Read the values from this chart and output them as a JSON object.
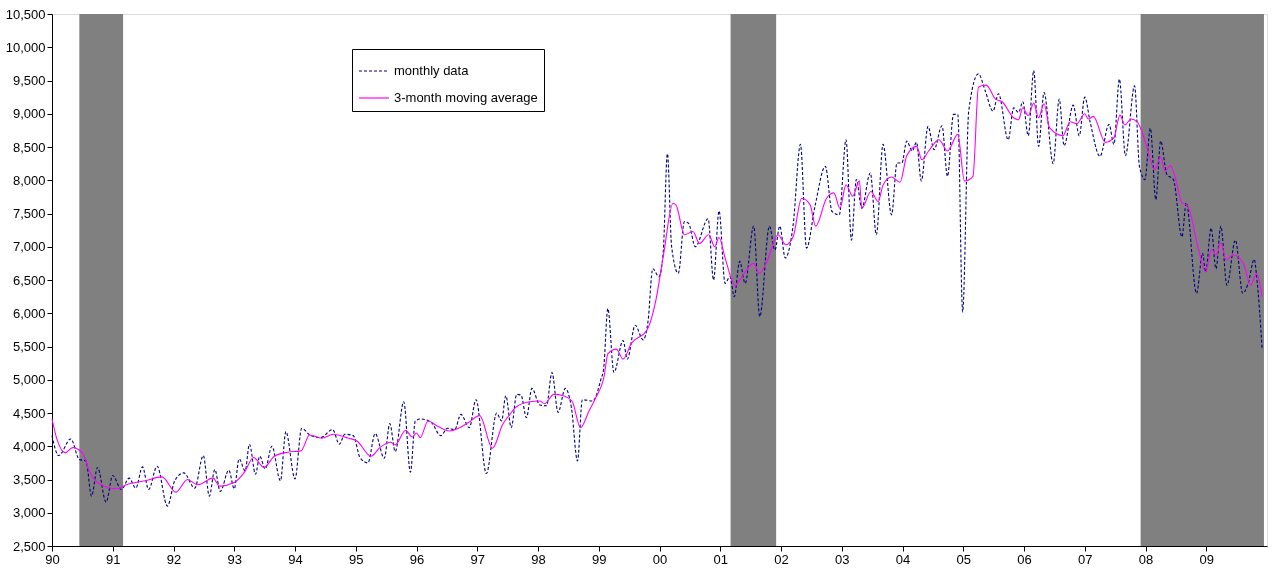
{
  "chart_data": {
    "type": "line",
    "xlim": [
      1990,
      2010
    ],
    "ylim": [
      2500,
      10500
    ],
    "xticks": [
      {
        "value": 1990,
        "label": "90"
      },
      {
        "value": 1991,
        "label": "91"
      },
      {
        "value": 1992,
        "label": "92"
      },
      {
        "value": 1993,
        "label": "93"
      },
      {
        "value": 1994,
        "label": "94"
      },
      {
        "value": 1995,
        "label": "95"
      },
      {
        "value": 1996,
        "label": "96"
      },
      {
        "value": 1997,
        "label": "97"
      },
      {
        "value": 1998,
        "label": "98"
      },
      {
        "value": 1999,
        "label": "99"
      },
      {
        "value": 2000,
        "label": "00"
      },
      {
        "value": 2001,
        "label": "01"
      },
      {
        "value": 2002,
        "label": "02"
      },
      {
        "value": 2003,
        "label": "03"
      },
      {
        "value": 2004,
        "label": "04"
      },
      {
        "value": 2005,
        "label": "05"
      },
      {
        "value": 2006,
        "label": "06"
      },
      {
        "value": 2007,
        "label": "07"
      },
      {
        "value": 2008,
        "label": "08"
      },
      {
        "value": 2009,
        "label": "09"
      }
    ],
    "yticks": [
      {
        "value": 2500,
        "label": "2,500"
      },
      {
        "value": 3000,
        "label": "3,000"
      },
      {
        "value": 3500,
        "label": "3,500"
      },
      {
        "value": 4000,
        "label": "4,000"
      },
      {
        "value": 4500,
        "label": "4,500"
      },
      {
        "value": 5000,
        "label": "5,000"
      },
      {
        "value": 5500,
        "label": "5,500"
      },
      {
        "value": 6000,
        "label": "6,000"
      },
      {
        "value": 6500,
        "label": "6,500"
      },
      {
        "value": 7000,
        "label": "7,000"
      },
      {
        "value": 7500,
        "label": "7,500"
      },
      {
        "value": 8000,
        "label": "8,000"
      },
      {
        "value": 8500,
        "label": "8,500"
      },
      {
        "value": 9000,
        "label": "9,000"
      },
      {
        "value": 9500,
        "label": "9,500"
      },
      {
        "value": 10000,
        "label": "10,000"
      },
      {
        "value": 10500,
        "label": "10,500"
      }
    ],
    "grid": false,
    "legend": "top",
    "marker": "none",
    "bands": [
      {
        "axis": "x",
        "from": 1990.45,
        "to": 1991.17,
        "color": "#808080"
      },
      {
        "axis": "x",
        "from": 2001.17,
        "to": 2001.92,
        "color": "#808080"
      },
      {
        "axis": "x",
        "from": 2007.92,
        "to": 2009.95,
        "color": "#808080"
      }
    ],
    "series": [
      {
        "name": "monthly data",
        "color": "#000080",
        "line_style": "dashed",
        "x": [
          1990.0,
          1990.11,
          1990.31,
          1990.45,
          1990.56,
          1990.65,
          1990.75,
          1990.89,
          1991.0,
          1991.14,
          1991.27,
          1991.38,
          1991.49,
          1991.59,
          1991.73,
          1991.9,
          1992.02,
          1992.17,
          1992.35,
          1992.49,
          1992.59,
          1992.68,
          1992.77,
          1992.91,
          1993.0,
          1993.08,
          1993.18,
          1993.25,
          1993.35,
          1993.42,
          1993.51,
          1993.62,
          1993.76,
          1993.85,
          1994.0,
          1994.11,
          1994.26,
          1994.42,
          1994.62,
          1994.73,
          1994.82,
          1994.96,
          1995.07,
          1995.2,
          1995.32,
          1995.47,
          1995.56,
          1995.65,
          1995.79,
          1995.9,
          1995.98,
          1996.07,
          1996.24,
          1996.4,
          1996.51,
          1996.63,
          1996.73,
          1996.87,
          1996.98,
          1997.15,
          1997.32,
          1997.4,
          1997.47,
          1997.56,
          1997.65,
          1997.72,
          1997.81,
          1997.9,
          1998.03,
          1998.14,
          1998.23,
          1998.33,
          1998.45,
          1998.55,
          1998.65,
          1998.73,
          1998.9,
          1999.04,
          1999.08,
          1999.15,
          1999.25,
          1999.4,
          1999.47,
          1999.6,
          1999.73,
          1999.81,
          1999.89,
          1999.99,
          2000.06,
          2000.13,
          2000.2,
          2000.31,
          2000.41,
          2000.48,
          2000.59,
          2000.8,
          2000.89,
          2000.98,
          2001.08,
          2001.16,
          2001.23,
          2001.32,
          2001.41,
          2001.55,
          2001.65,
          2001.81,
          2001.9,
          2001.98,
          2002.07,
          2002.2,
          2002.32,
          2002.42,
          2002.56,
          2002.73,
          2002.84,
          2002.96,
          2003.07,
          2003.16,
          2003.24,
          2003.33,
          2003.47,
          2003.57,
          2003.68,
          2003.82,
          2003.91,
          2003.99,
          2004.07,
          2004.16,
          2004.23,
          2004.31,
          2004.42,
          2004.52,
          2004.65,
          2004.74,
          2004.84,
          2004.91,
          2004.99,
          2005.09,
          2005.25,
          2005.36,
          2005.49,
          2005.58,
          2005.74,
          2005.83,
          2005.91,
          2005.98,
          2006.07,
          2006.16,
          2006.24,
          2006.33,
          2006.48,
          2006.58,
          2006.66,
          2006.81,
          2006.91,
          2007.0,
          2007.09,
          2007.25,
          2007.4,
          2007.48,
          2007.57,
          2007.67,
          2007.82,
          2007.9,
          2007.99,
          2008.08,
          2008.17,
          2008.25,
          2008.35,
          2008.46,
          2008.6,
          2008.67,
          2008.84,
          2008.94,
          2008.99,
          2009.08,
          2009.16,
          2009.24,
          2009.34,
          2009.48,
          2009.6,
          2009.69,
          2009.79,
          2009.83,
          2009.92
        ],
        "values": [
          4160,
          3860,
          4110,
          3800,
          3780,
          3250,
          3680,
          3160,
          3560,
          3350,
          3520,
          3370,
          3690,
          3350,
          3700,
          3100,
          3480,
          3600,
          3370,
          3860,
          3250,
          3650,
          3320,
          3640,
          3360,
          3810,
          3630,
          4030,
          3580,
          3850,
          3660,
          4000,
          3480,
          4220,
          3510,
          4270,
          4160,
          4130,
          4250,
          4030,
          4180,
          4160,
          3830,
          3750,
          4190,
          3820,
          4340,
          3920,
          4670,
          3610,
          4380,
          4410,
          4360,
          4160,
          4270,
          4250,
          4480,
          4280,
          4700,
          3590,
          4500,
          4380,
          4760,
          4280,
          4780,
          4770,
          4430,
          4870,
          4620,
          4610,
          5110,
          4510,
          4870,
          4580,
          3780,
          4700,
          4680,
          5020,
          5160,
          6070,
          5110,
          5590,
          5310,
          5820,
          5600,
          5870,
          6670,
          6550,
          6900,
          8400,
          7000,
          6600,
          7380,
          7350,
          7000,
          7420,
          6500,
          7540,
          6450,
          6550,
          6250,
          6780,
          6450,
          7310,
          5950,
          7310,
          6950,
          7310,
          6830,
          7330,
          8540,
          6980,
          7610,
          8210,
          7530,
          7480,
          8610,
          7100,
          8010,
          7580,
          8110,
          7180,
          8540,
          7480,
          8260,
          8260,
          8590,
          8440,
          8570,
          7990,
          8810,
          8460,
          8820,
          8060,
          8990,
          8990,
          6020,
          9040,
          9600,
          9350,
          9040,
          9300,
          8610,
          9090,
          9020,
          9180,
          8670,
          9650,
          8510,
          9320,
          8250,
          9220,
          8520,
          9130,
          8670,
          9250,
          8870,
          8360,
          8840,
          8540,
          9520,
          8370,
          9420,
          8210,
          8010,
          8780,
          7710,
          8590,
          8090,
          8010,
          7150,
          7660,
          6300,
          6900,
          6620,
          7280,
          6670,
          7310,
          6420,
          7100,
          6300,
          6450,
          6810,
          6550,
          5460
        ]
      },
      {
        "name": "3-month moving average",
        "color": "#ff00ff",
        "line_style": "solid",
        "x": [
          1990.0,
          1990.08,
          1990.22,
          1990.34,
          1990.5,
          1990.64,
          1990.86,
          1991.08,
          1991.22,
          1991.53,
          1991.81,
          1992.04,
          1992.23,
          1992.4,
          1992.65,
          1992.76,
          1992.99,
          1993.16,
          1993.32,
          1993.49,
          1993.66,
          1993.88,
          1994.1,
          1994.24,
          1994.44,
          1994.63,
          1994.88,
          1995.02,
          1995.25,
          1995.41,
          1995.57,
          1995.65,
          1995.82,
          1995.93,
          1996.0,
          1996.06,
          1996.19,
          1996.35,
          1996.55,
          1996.69,
          1996.86,
          1997.04,
          1997.25,
          1997.42,
          1997.53,
          1997.64,
          1997.86,
          1998.03,
          1998.11,
          1998.26,
          1998.42,
          1998.56,
          1998.7,
          1998.84,
          1998.95,
          1999.09,
          1999.15,
          1999.29,
          1999.4,
          1999.54,
          1999.79,
          1999.93,
          2000.07,
          2000.22,
          2000.27,
          2000.41,
          2000.55,
          2000.66,
          2000.81,
          2000.91,
          2000.98,
          2001.08,
          2001.25,
          2001.33,
          2001.55,
          2001.64,
          2001.77,
          2001.95,
          2002.08,
          2002.2,
          2002.34,
          2002.48,
          2002.57,
          2002.75,
          2002.87,
          2002.97,
          2003.07,
          2003.18,
          2003.29,
          2003.33,
          2003.48,
          2003.6,
          2003.68,
          2003.82,
          2003.96,
          2004.07,
          2004.23,
          2004.32,
          2004.43,
          2004.6,
          2004.74,
          2004.91,
          2005.02,
          2005.16,
          2005.25,
          2005.3,
          2005.38,
          2005.53,
          2005.64,
          2005.83,
          2005.91,
          2005.98,
          2006.07,
          2006.16,
          2006.24,
          2006.33,
          2006.42,
          2006.64,
          2006.76,
          2006.87,
          2007.0,
          2007.06,
          2007.14,
          2007.34,
          2007.48,
          2007.58,
          2007.66,
          2007.76,
          2007.87,
          2008.01,
          2008.15,
          2008.25,
          2008.32,
          2008.41,
          2008.49,
          2008.6,
          2008.69,
          2008.88,
          2008.99,
          2009.09,
          2009.16,
          2009.24,
          2009.33,
          2009.44,
          2009.61,
          2009.73,
          2009.83,
          2009.92
        ],
        "values": [
          4410,
          4110,
          3900,
          3980,
          3900,
          3580,
          3400,
          3360,
          3420,
          3480,
          3540,
          3310,
          3500,
          3420,
          3520,
          3400,
          3450,
          3600,
          3830,
          3680,
          3850,
          3910,
          3930,
          4170,
          4120,
          4180,
          4120,
          4080,
          3850,
          3990,
          4060,
          4020,
          4240,
          4140,
          4200,
          4130,
          4380,
          4300,
          4230,
          4270,
          4360,
          4460,
          3970,
          4330,
          4470,
          4590,
          4670,
          4680,
          4640,
          4780,
          4760,
          4680,
          4280,
          4530,
          4730,
          5060,
          5390,
          5460,
          5310,
          5550,
          5740,
          6150,
          6900,
          7650,
          7630,
          7180,
          7230,
          7050,
          7180,
          7000,
          7140,
          6830,
          6410,
          6510,
          6750,
          6600,
          6780,
          7180,
          7030,
          7150,
          7730,
          7630,
          7310,
          7730,
          7810,
          7580,
          7930,
          7760,
          7990,
          7580,
          7830,
          7680,
          7930,
          8050,
          7970,
          8370,
          8510,
          8310,
          8440,
          8610,
          8440,
          8690,
          7990,
          8060,
          9400,
          9420,
          9430,
          9220,
          9180,
          8940,
          8910,
          9090,
          8970,
          9160,
          8940,
          9150,
          8790,
          8670,
          8880,
          8850,
          9000,
          8920,
          8960,
          8570,
          8640,
          8980,
          8830,
          8920,
          8870,
          8540,
          8160,
          8350,
          8140,
          8220,
          8040,
          7660,
          7620,
          6930,
          6620,
          6960,
          6880,
          7060,
          6800,
          6880,
          6750,
          6420,
          6600,
          6250
        ]
      }
    ]
  }
}
